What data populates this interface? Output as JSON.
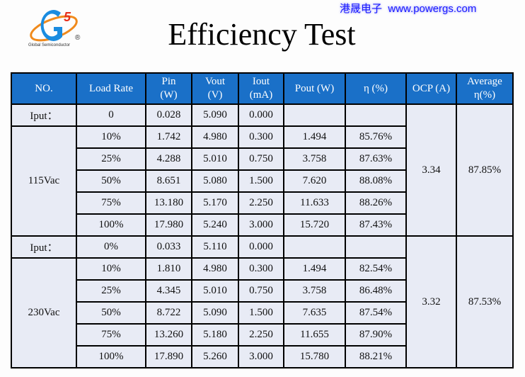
{
  "logo": {
    "text": "Global Semiconductor",
    "mark": "G5",
    "registered": "®"
  },
  "title": "Efficiency Test",
  "brand": {
    "chinese": "港晟电子",
    "url": "www.powergs.com"
  },
  "headers": [
    "NO.",
    "Load Rate",
    "Pin\n(W)",
    "Vout\n(V)",
    "Iout\n(mA)",
    "Pout (W)",
    "η (%)",
    "OCP (A)",
    "Average\nη(%)"
  ],
  "groups": [
    {
      "input_row": {
        "label": "Iput：",
        "load": "0",
        "pin": "0.028",
        "vout": "5.090",
        "iout": "0.000"
      },
      "name": "115Vac",
      "ocp": "3.34",
      "average": "87.85%",
      "rows": [
        {
          "load": "10%",
          "pin": "1.742",
          "vout": "4.980",
          "iout": "0.300",
          "pout": "1.494",
          "eff": "85.76%"
        },
        {
          "load": "25%",
          "pin": "4.288",
          "vout": "5.010",
          "iout": "0.750",
          "pout": "3.758",
          "eff": "87.63%"
        },
        {
          "load": "50%",
          "pin": "8.651",
          "vout": "5.080",
          "iout": "1.500",
          "pout": "7.620",
          "eff": "88.08%"
        },
        {
          "load": "75%",
          "pin": "13.180",
          "vout": "5.170",
          "iout": "2.250",
          "pout": "11.633",
          "eff": "88.26%"
        },
        {
          "load": "100%",
          "pin": "17.980",
          "vout": "5.240",
          "iout": "3.000",
          "pout": "15.720",
          "eff": "87.43%"
        }
      ]
    },
    {
      "input_row": {
        "label": "Iput：",
        "load": "0%",
        "pin": "0.033",
        "vout": "5.110",
        "iout": "0.000"
      },
      "name": "230Vac",
      "ocp": "3.32",
      "average": "87.53%",
      "rows": [
        {
          "load": "10%",
          "pin": "1.810",
          "vout": "4.980",
          "iout": "0.300",
          "pout": "1.494",
          "eff": "82.54%"
        },
        {
          "load": "25%",
          "pin": "4.345",
          "vout": "5.010",
          "iout": "0.750",
          "pout": "3.758",
          "eff": "86.48%"
        },
        {
          "load": "50%",
          "pin": "8.722",
          "vout": "5.090",
          "iout": "1.500",
          "pout": "7.635",
          "eff": "87.54%"
        },
        {
          "load": "75%",
          "pin": "13.260",
          "vout": "5.180",
          "iout": "2.250",
          "pout": "11.655",
          "eff": "87.90%"
        },
        {
          "load": "100%",
          "pin": "17.890",
          "vout": "5.260",
          "iout": "3.000",
          "pout": "15.780",
          "eff": "88.21%"
        }
      ]
    }
  ],
  "colors": {
    "header": "#1a70c8",
    "cell": "#e8ebf5",
    "brand": "#1a1aff",
    "logo_blue": "#1a8ce0",
    "logo_orange": "#f08a1c"
  }
}
